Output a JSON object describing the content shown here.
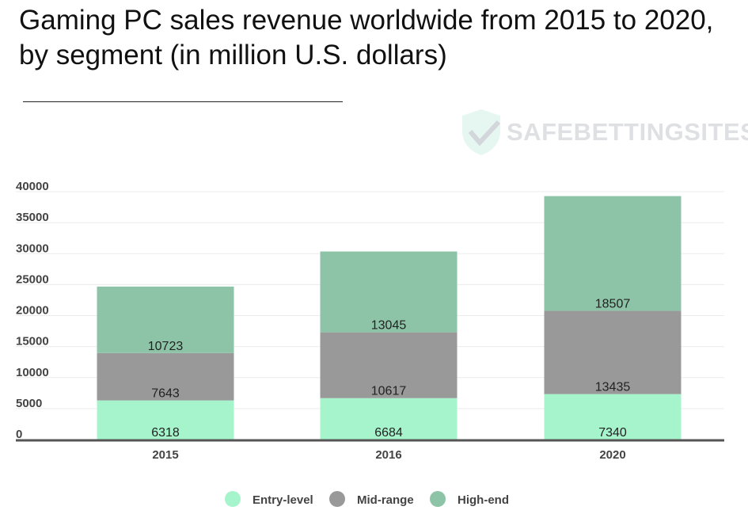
{
  "chart_data": {
    "type": "bar",
    "stacked": true,
    "title": "Gaming PC sales revenue worldwide from 2015 to 2020, by segment (in million U.S. dollars)",
    "categories": [
      "2015",
      "2016",
      "2020"
    ],
    "series": [
      {
        "name": "Entry-level",
        "color": "#a6f4cc",
        "values": [
          6318,
          6684,
          7340
        ]
      },
      {
        "name": "Mid-range",
        "color": "#999999",
        "values": [
          7643,
          10617,
          13435
        ]
      },
      {
        "name": "High-end",
        "color": "#8dc3a7",
        "values": [
          10723,
          13045,
          18507
        ]
      }
    ],
    "ylim": [
      0,
      40000
    ],
    "yticks": [
      0,
      5000,
      10000,
      15000,
      20000,
      25000,
      30000,
      35000,
      40000
    ],
    "xlabel": "",
    "ylabel": "",
    "grid": true,
    "legend": "bottom-center"
  },
  "watermark": "SAFEBETTINGSITES"
}
